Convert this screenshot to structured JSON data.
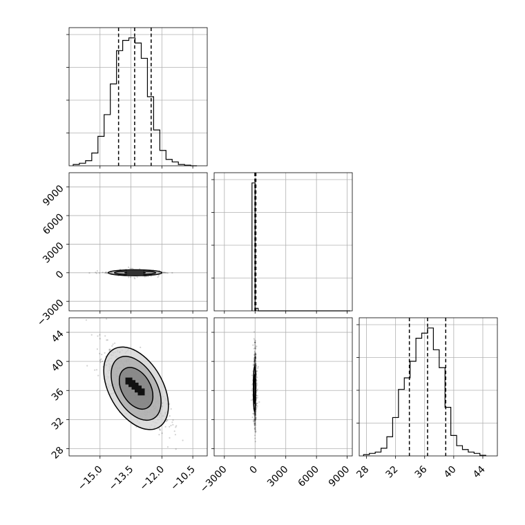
{
  "chart_data": {
    "type": "corner",
    "grid": true,
    "histograms": [
      {
        "variable_index": 0,
        "range": [
          -16.5,
          -9.8
        ],
        "bins": [
          -16.3,
          -16.0,
          -15.7,
          -15.4,
          -15.1,
          -14.8,
          -14.5,
          -14.2,
          -13.9,
          -13.6,
          -13.3,
          -13.0,
          -12.7,
          -12.4,
          -12.1,
          -11.8,
          -11.5,
          -11.2,
          -10.9,
          -10.6,
          -10.3
        ],
        "counts": [
          0.01,
          0.02,
          0.04,
          0.1,
          0.23,
          0.4,
          0.64,
          0.9,
          0.98,
          1.0,
          0.96,
          0.84,
          0.54,
          0.28,
          0.12,
          0.05,
          0.03,
          0.01,
          0.005,
          0.0
        ],
        "quantiles": [
          -14.1,
          -13.32,
          -12.52
        ]
      },
      {
        "variable_index": 1,
        "range": [
          -4000,
          9500
        ],
        "bins": [
          -300,
          0,
          300,
          9300
        ],
        "counts": [
          1.0,
          0.02,
          0.0
        ],
        "quantiles": [
          -20,
          30,
          80
        ]
      },
      {
        "variable_index": 2,
        "range": [
          27,
          46
        ],
        "bins": [
          27.6,
          28.4,
          29.2,
          30.0,
          30.8,
          31.6,
          32.4,
          33.2,
          34.0,
          34.8,
          35.6,
          36.4,
          37.2,
          38.0,
          38.8,
          39.6,
          40.4,
          41.2,
          42.0,
          42.8,
          43.6,
          44.4
        ],
        "counts": [
          0.01,
          0.02,
          0.03,
          0.06,
          0.15,
          0.3,
          0.52,
          0.61,
          0.74,
          0.92,
          0.96,
          1.0,
          0.83,
          0.69,
          0.38,
          0.16,
          0.08,
          0.05,
          0.03,
          0.02,
          0.005
        ],
        "quantiles": [
          33.9,
          36.4,
          38.9
        ]
      }
    ],
    "pairs": [
      {
        "x_index": 0,
        "y_index": 1,
        "xrange": [
          -16.5,
          -9.8
        ],
        "yrange": [
          -4000,
          10500
        ],
        "center": [
          -13.3,
          0
        ],
        "spread": [
          0.55,
          35
        ],
        "correlation": 0.0,
        "contours": [
          {
            "cx": -13.3,
            "cy": 0,
            "rx": 0.5,
            "ry": 80
          },
          {
            "cx": -13.3,
            "cy": 0,
            "rx": 1.0,
            "ry": 200
          },
          {
            "cx": -13.3,
            "cy": 0,
            "rx": 1.3,
            "ry": 310
          }
        ]
      },
      {
        "x_index": 0,
        "y_index": 2,
        "xrange": [
          -16.5,
          -9.8
        ],
        "yrange": [
          27,
          46
        ],
        "center": [
          -13.3,
          36.4
        ],
        "spread": [
          0.7,
          2.4
        ],
        "correlation": -0.7,
        "contours": [
          {
            "cx": -13.25,
            "cy": 36.3,
            "rx": 0.7,
            "ry": 3.1,
            "angle_deg": -30
          },
          {
            "cx": -13.25,
            "cy": 36.3,
            "rx": 1.0,
            "ry": 4.8,
            "angle_deg": -30
          },
          {
            "cx": -13.25,
            "cy": 36.3,
            "rx": 1.3,
            "ry": 6.2,
            "angle_deg": -30
          }
        ]
      },
      {
        "x_index": 1,
        "y_index": 2,
        "xrange": [
          -4000,
          9500
        ],
        "yrange": [
          27,
          46
        ],
        "center": [
          0,
          36.4
        ],
        "spread": [
          35,
          2.4
        ],
        "correlation": 0.0,
        "contours": [
          {
            "cx": -60,
            "cy": 36.2,
            "rx": 60,
            "ry": 2.0
          },
          {
            "cx": -60,
            "cy": 36.2,
            "rx": 110,
            "ry": 3.1
          }
        ]
      }
    ],
    "axis_ticks": {
      "x0": [
        -15.0,
        -13.5,
        -12.0,
        -10.5
      ],
      "x1": [
        -3000,
        0,
        3000,
        6000,
        9000
      ],
      "x2": [
        28,
        32,
        36,
        40,
        44
      ],
      "y1": [
        -3000,
        0,
        3000,
        6000,
        9000
      ],
      "y2": [
        28,
        32,
        36,
        40,
        44
      ]
    },
    "tick_labels": {
      "x0": [
        "−15.0",
        "−13.5",
        "−12.0",
        "−10.5"
      ],
      "x1": [
        "−3000",
        "0",
        "3000",
        "6000",
        "9000"
      ],
      "x2": [
        "28",
        "32",
        "36",
        "40",
        "44"
      ],
      "y1": [
        "−3000",
        "0",
        "3000",
        "6000",
        "9000"
      ],
      "y2": [
        "28",
        "32",
        "36",
        "40",
        "44"
      ]
    }
  }
}
